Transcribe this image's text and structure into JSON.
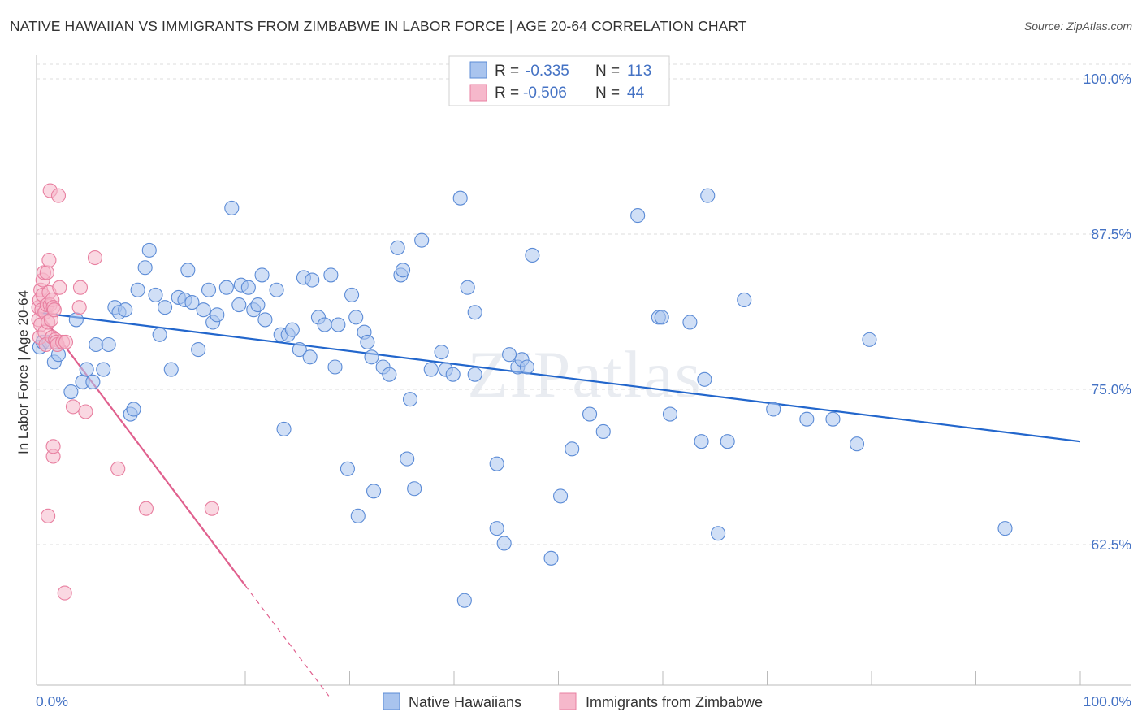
{
  "title": "NATIVE HAWAIIAN VS IMMIGRANTS FROM ZIMBABWE IN LABOR FORCE | AGE 20-64 CORRELATION CHART",
  "source": "Source: ZipAtlas.com",
  "watermark": "ZIPatlas",
  "colors": {
    "blue_fill": "#a9c4ee",
    "blue_stroke": "#5b8bd6",
    "blue_line": "#2266cc",
    "pink_fill": "#f6b8cb",
    "pink_stroke": "#e87fa0",
    "pink_line": "#e0608e",
    "label_blue": "#4472c4",
    "grid": "#dddddd"
  },
  "stats_legend": [
    {
      "r_label": "R =",
      "r_value": "-0.335",
      "n_label": "N =",
      "n_value": "113"
    },
    {
      "r_label": "R =",
      "r_value": "-0.506",
      "n_label": "N =",
      "n_value": "44"
    }
  ],
  "chart_data": {
    "type": "scatter",
    "title": "NATIVE HAWAIIAN VS IMMIGRANTS FROM ZIMBABWE IN LABOR FORCE | AGE 20-64 CORRELATION CHART",
    "xlabel": "",
    "ylabel": "In Labor Force | Age 20-64",
    "xlim": [
      0,
      100
    ],
    "ylim": [
      50,
      101
    ],
    "x_tick_labels": [
      "0.0%",
      "100.0%"
    ],
    "y_ticks": [
      62.5,
      75.0,
      87.5,
      100.0
    ],
    "y_tick_labels": [
      "62.5%",
      "75.0%",
      "87.5%",
      "100.0%"
    ],
    "grid": true,
    "legend_position": "bottom",
    "series": [
      {
        "name": "Native Hawaiians",
        "color": "#a9c4ee",
        "trend": {
          "x": [
            0,
            100
          ],
          "y": [
            81.2,
            70.8
          ]
        },
        "points": [
          [
            0.3,
            78.4
          ],
          [
            0.6,
            78.8
          ],
          [
            1.2,
            78.8
          ],
          [
            1.7,
            77.2
          ],
          [
            2.1,
            77.8
          ],
          [
            3.3,
            74.8
          ],
          [
            3.8,
            80.6
          ],
          [
            4.4,
            75.6
          ],
          [
            4.8,
            76.6
          ],
          [
            5.4,
            75.6
          ],
          [
            5.7,
            78.6
          ],
          [
            6.4,
            76.6
          ],
          [
            6.9,
            78.6
          ],
          [
            7.5,
            81.6
          ],
          [
            7.9,
            81.2
          ],
          [
            8.5,
            81.4
          ],
          [
            9.0,
            73.0
          ],
          [
            9.3,
            73.4
          ],
          [
            9.7,
            83.0
          ],
          [
            10.4,
            84.8
          ],
          [
            10.8,
            86.2
          ],
          [
            11.4,
            82.6
          ],
          [
            11.8,
            79.4
          ],
          [
            12.3,
            81.6
          ],
          [
            12.9,
            76.6
          ],
          [
            13.6,
            82.4
          ],
          [
            14.2,
            82.2
          ],
          [
            14.5,
            84.6
          ],
          [
            14.9,
            82.0
          ],
          [
            15.5,
            78.2
          ],
          [
            16.0,
            81.4
          ],
          [
            16.5,
            83.0
          ],
          [
            16.9,
            80.4
          ],
          [
            17.3,
            81.0
          ],
          [
            18.2,
            83.2
          ],
          [
            18.7,
            89.6
          ],
          [
            19.4,
            81.8
          ],
          [
            19.6,
            83.4
          ],
          [
            20.3,
            83.2
          ],
          [
            20.8,
            81.4
          ],
          [
            21.2,
            81.8
          ],
          [
            21.6,
            84.2
          ],
          [
            21.9,
            80.6
          ],
          [
            23.0,
            83.0
          ],
          [
            23.4,
            79.4
          ],
          [
            23.7,
            71.8
          ],
          [
            24.1,
            79.4
          ],
          [
            24.5,
            79.8
          ],
          [
            25.2,
            78.2
          ],
          [
            25.6,
            84.0
          ],
          [
            26.2,
            77.6
          ],
          [
            26.4,
            83.8
          ],
          [
            27.0,
            80.8
          ],
          [
            27.6,
            80.2
          ],
          [
            28.2,
            84.2
          ],
          [
            28.9,
            80.2
          ],
          [
            28.6,
            76.8
          ],
          [
            29.8,
            68.6
          ],
          [
            30.2,
            82.6
          ],
          [
            30.6,
            80.8
          ],
          [
            30.8,
            64.8
          ],
          [
            31.4,
            79.6
          ],
          [
            31.7,
            78.8
          ],
          [
            32.1,
            77.6
          ],
          [
            32.3,
            66.8
          ],
          [
            33.2,
            76.8
          ],
          [
            33.8,
            76.2
          ],
          [
            34.6,
            86.4
          ],
          [
            34.9,
            84.2
          ],
          [
            35.1,
            84.6
          ],
          [
            35.5,
            69.4
          ],
          [
            35.8,
            74.2
          ],
          [
            36.2,
            67.0
          ],
          [
            36.9,
            87.0
          ],
          [
            37.8,
            76.6
          ],
          [
            38.8,
            78.0
          ],
          [
            39.2,
            76.6
          ],
          [
            39.9,
            76.2
          ],
          [
            40.6,
            90.4
          ],
          [
            41.0,
            58.0
          ],
          [
            41.3,
            83.2
          ],
          [
            42.0,
            81.2
          ],
          [
            42.0,
            76.2
          ],
          [
            44.1,
            63.8
          ],
          [
            44.1,
            69.0
          ],
          [
            44.8,
            62.6
          ],
          [
            45.3,
            77.8
          ],
          [
            46.1,
            76.8
          ],
          [
            46.5,
            77.4
          ],
          [
            47.0,
            76.8
          ],
          [
            47.5,
            85.8
          ],
          [
            49.3,
            61.4
          ],
          [
            50.2,
            66.4
          ],
          [
            51.3,
            70.2
          ],
          [
            53.0,
            73.0
          ],
          [
            54.3,
            71.6
          ],
          [
            57.6,
            89.0
          ],
          [
            59.6,
            80.8
          ],
          [
            59.9,
            80.8
          ],
          [
            60.7,
            73.0
          ],
          [
            62.6,
            80.4
          ],
          [
            63.7,
            70.8
          ],
          [
            64.0,
            75.8
          ],
          [
            64.3,
            90.6
          ],
          [
            65.3,
            63.4
          ],
          [
            66.2,
            70.8
          ],
          [
            67.8,
            82.2
          ],
          [
            70.6,
            73.4
          ],
          [
            73.8,
            72.6
          ],
          [
            76.3,
            72.6
          ],
          [
            78.6,
            70.6
          ],
          [
            79.8,
            79.0
          ],
          [
            92.8,
            63.8
          ]
        ]
      },
      {
        "name": "Immigrants from Zimbabwe",
        "color": "#f6b8cb",
        "trend": {
          "x": [
            0,
            20
          ],
          "y": [
            81.5,
            59.2
          ]
        },
        "trend_dashed": {
          "x": [
            20,
            28
          ],
          "y": [
            59.2,
            50.3
          ]
        },
        "points": [
          [
            0.2,
            81.6
          ],
          [
            0.2,
            80.6
          ],
          [
            0.3,
            79.2
          ],
          [
            0.3,
            82.2
          ],
          [
            0.4,
            83.0
          ],
          [
            0.4,
            80.2
          ],
          [
            0.5,
            81.4
          ],
          [
            0.6,
            82.6
          ],
          [
            0.6,
            83.8
          ],
          [
            0.7,
            84.4
          ],
          [
            0.8,
            81.2
          ],
          [
            0.8,
            79.6
          ],
          [
            0.9,
            78.6
          ],
          [
            1.0,
            84.4
          ],
          [
            1.0,
            81.8
          ],
          [
            1.1,
            80.4
          ],
          [
            1.2,
            82.8
          ],
          [
            1.2,
            85.4
          ],
          [
            1.3,
            81.8
          ],
          [
            1.3,
            91.0
          ],
          [
            1.4,
            80.6
          ],
          [
            1.5,
            79.2
          ],
          [
            1.5,
            82.2
          ],
          [
            1.6,
            81.6
          ],
          [
            1.7,
            81.4
          ],
          [
            1.8,
            79.0
          ],
          [
            1.9,
            78.8
          ],
          [
            2.0,
            78.6
          ],
          [
            2.1,
            90.6
          ],
          [
            2.2,
            83.2
          ],
          [
            2.5,
            78.8
          ],
          [
            2.8,
            78.8
          ],
          [
            1.1,
            64.8
          ],
          [
            1.6,
            69.6
          ],
          [
            1.6,
            70.4
          ],
          [
            2.7,
            58.6
          ],
          [
            3.5,
            73.6
          ],
          [
            4.1,
            81.6
          ],
          [
            4.2,
            83.2
          ],
          [
            4.7,
            73.2
          ],
          [
            5.6,
            85.6
          ],
          [
            7.8,
            68.6
          ],
          [
            10.5,
            65.4
          ],
          [
            16.8,
            65.4
          ]
        ]
      }
    ]
  }
}
